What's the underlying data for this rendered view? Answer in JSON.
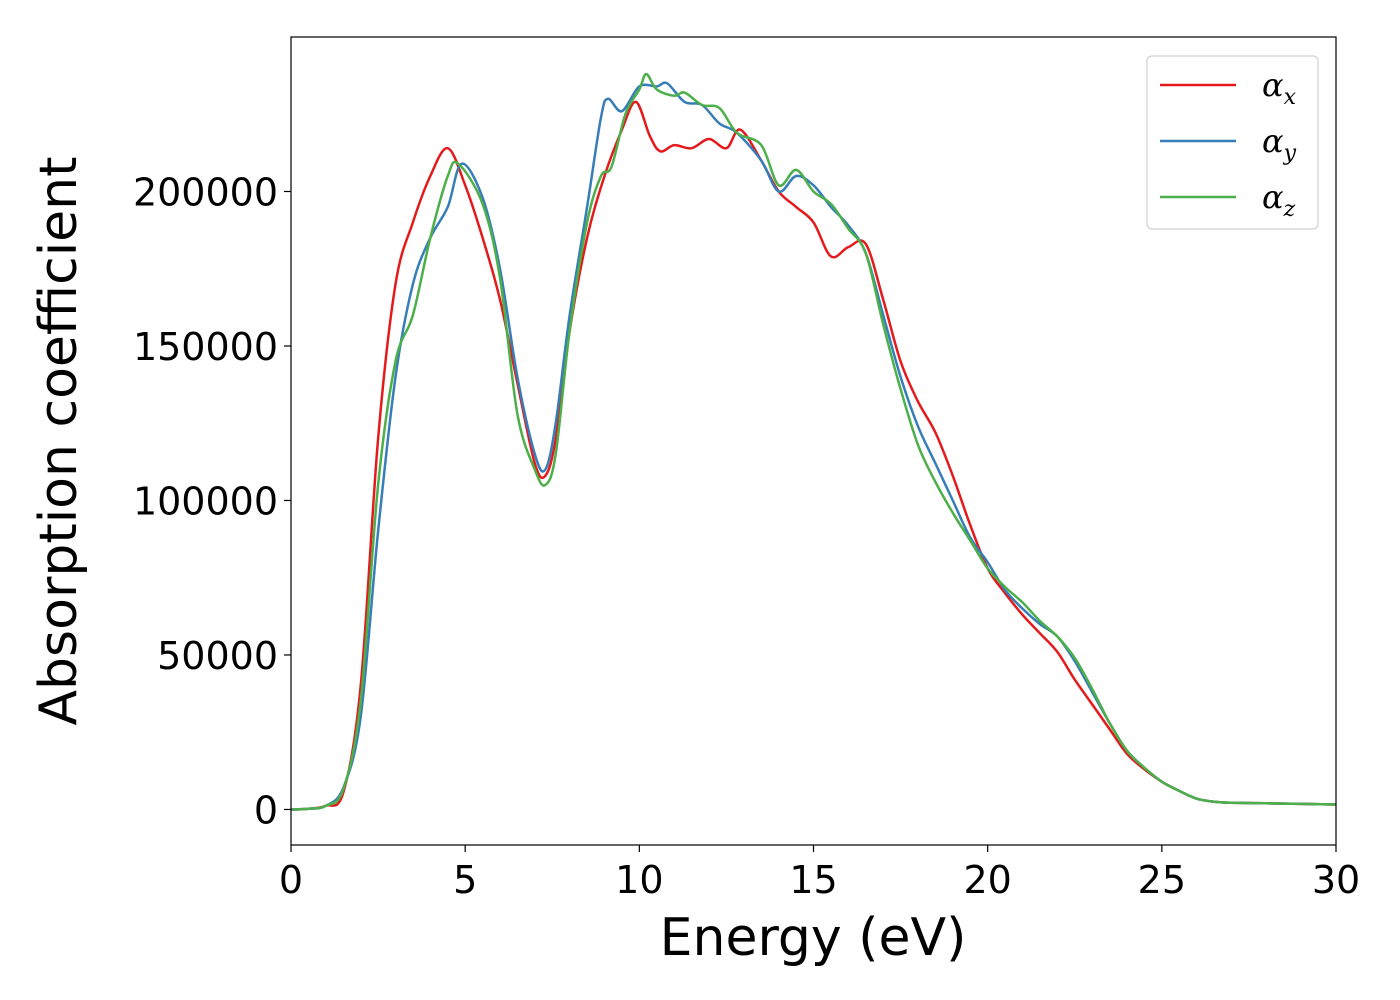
{
  "chart_data": {
    "type": "line",
    "xlabel": "Energy (eV)",
    "ylabel": "Absorption coefficient",
    "xlim": [
      0,
      30
    ],
    "ylim": [
      -11500,
      250000
    ],
    "xticks": [
      0,
      5,
      10,
      15,
      20,
      25,
      30
    ],
    "xtick_labels": [
      "0",
      "5",
      "10",
      "15",
      "20",
      "25",
      "30"
    ],
    "yticks": [
      0,
      50000,
      100000,
      150000,
      200000
    ],
    "ytick_labels": [
      "0",
      "50000",
      "100000",
      "150000",
      "200000"
    ],
    "grid": false,
    "legend_position": "top-right",
    "series": [
      {
        "name": "α",
        "subscript": "x",
        "color": "#e41a1c",
        "points": [
          [
            0,
            0
          ],
          [
            0.5,
            200
          ],
          [
            1,
            1200
          ],
          [
            1.5,
            5500
          ],
          [
            2,
            40000
          ],
          [
            2.5,
            120000
          ],
          [
            3,
            170000
          ],
          [
            3.5,
            190000
          ],
          [
            4,
            205000
          ],
          [
            4.5,
            214000
          ],
          [
            5,
            202000
          ],
          [
            5.5,
            185000
          ],
          [
            6,
            165000
          ],
          [
            6.5,
            138000
          ],
          [
            7,
            112000
          ],
          [
            7.3,
            108000
          ],
          [
            7.6,
            120000
          ],
          [
            8,
            155000
          ],
          [
            8.5,
            185000
          ],
          [
            9,
            205000
          ],
          [
            9.5,
            220000
          ],
          [
            9.9,
            229000
          ],
          [
            10.3,
            218000
          ],
          [
            10.6,
            213000
          ],
          [
            11,
            215000
          ],
          [
            11.5,
            214000
          ],
          [
            12,
            217000
          ],
          [
            12.5,
            214000
          ],
          [
            12.9,
            220000
          ],
          [
            13.5,
            210000
          ],
          [
            14,
            200000
          ],
          [
            14.5,
            195000
          ],
          [
            15,
            190000
          ],
          [
            15.5,
            179000
          ],
          [
            16,
            182000
          ],
          [
            16.5,
            183000
          ],
          [
            17,
            165000
          ],
          [
            17.5,
            145000
          ],
          [
            18,
            132000
          ],
          [
            18.5,
            122000
          ],
          [
            19,
            108000
          ],
          [
            19.5,
            92000
          ],
          [
            20,
            78000
          ],
          [
            20.5,
            70000
          ],
          [
            21,
            63000
          ],
          [
            21.5,
            57000
          ],
          [
            22,
            51000
          ],
          [
            22.5,
            42000
          ],
          [
            23,
            34000
          ],
          [
            23.5,
            26000
          ],
          [
            24,
            18000
          ],
          [
            24.5,
            13000
          ],
          [
            25,
            9000
          ],
          [
            25.5,
            6000
          ],
          [
            26,
            3500
          ],
          [
            26.5,
            2500
          ],
          [
            27,
            2200
          ],
          [
            28,
            2000
          ],
          [
            29,
            1800
          ],
          [
            30,
            1600
          ]
        ]
      },
      {
        "name": "α",
        "subscript": "y",
        "color": "#377eb8",
        "points": [
          [
            0,
            0
          ],
          [
            0.5,
            200
          ],
          [
            1,
            1200
          ],
          [
            1.5,
            7000
          ],
          [
            2,
            30000
          ],
          [
            2.5,
            90000
          ],
          [
            3,
            140000
          ],
          [
            3.5,
            170000
          ],
          [
            4,
            185000
          ],
          [
            4.5,
            195000
          ],
          [
            4.9,
            209000
          ],
          [
            5.5,
            198000
          ],
          [
            6,
            175000
          ],
          [
            6.5,
            140000
          ],
          [
            7,
            115000
          ],
          [
            7.3,
            110000
          ],
          [
            7.6,
            125000
          ],
          [
            8,
            160000
          ],
          [
            8.5,
            195000
          ],
          [
            8.9,
            224000
          ],
          [
            9.1,
            230000
          ],
          [
            9.5,
            226000
          ],
          [
            10,
            234000
          ],
          [
            10.5,
            234000
          ],
          [
            10.8,
            235000
          ],
          [
            11.3,
            229000
          ],
          [
            11.8,
            228000
          ],
          [
            12.3,
            222000
          ],
          [
            12.8,
            219000
          ],
          [
            13.5,
            210000
          ],
          [
            14,
            200000
          ],
          [
            14.5,
            205000
          ],
          [
            15,
            202000
          ],
          [
            15.5,
            195000
          ],
          [
            16,
            189000
          ],
          [
            16.5,
            180000
          ],
          [
            17,
            160000
          ],
          [
            17.5,
            140000
          ],
          [
            18,
            124000
          ],
          [
            18.5,
            112000
          ],
          [
            19,
            100000
          ],
          [
            19.5,
            88000
          ],
          [
            20,
            80000
          ],
          [
            20.5,
            71000
          ],
          [
            21,
            65000
          ],
          [
            21.5,
            60000
          ],
          [
            22,
            56000
          ],
          [
            22.5,
            48000
          ],
          [
            23,
            38000
          ],
          [
            23.5,
            28000
          ],
          [
            24,
            19000
          ],
          [
            24.5,
            13500
          ],
          [
            25,
            9000
          ],
          [
            25.5,
            6000
          ],
          [
            26,
            3500
          ],
          [
            26.5,
            2500
          ],
          [
            27,
            2200
          ],
          [
            28,
            2000
          ],
          [
            29,
            1800
          ],
          [
            30,
            1600
          ]
        ]
      },
      {
        "name": "α",
        "subscript": "z",
        "color": "#4daf4a",
        "points": [
          [
            0,
            0
          ],
          [
            0.5,
            200
          ],
          [
            1,
            1200
          ],
          [
            1.5,
            6500
          ],
          [
            2,
            35000
          ],
          [
            2.5,
            105000
          ],
          [
            3,
            145000
          ],
          [
            3.5,
            160000
          ],
          [
            4,
            185000
          ],
          [
            4.5,
            205000
          ],
          [
            4.8,
            209000
          ],
          [
            5.5,
            196000
          ],
          [
            6,
            172000
          ],
          [
            6.5,
            128000
          ],
          [
            7,
            110000
          ],
          [
            7.3,
            105000
          ],
          [
            7.6,
            115000
          ],
          [
            8,
            155000
          ],
          [
            8.5,
            190000
          ],
          [
            8.9,
            205000
          ],
          [
            9.2,
            208000
          ],
          [
            9.6,
            225000
          ],
          [
            10,
            233000
          ],
          [
            10.2,
            238000
          ],
          [
            10.5,
            233000
          ],
          [
            11,
            231000
          ],
          [
            11.3,
            232000
          ],
          [
            11.8,
            228000
          ],
          [
            12.3,
            227000
          ],
          [
            12.8,
            219000
          ],
          [
            13.5,
            215000
          ],
          [
            14,
            202000
          ],
          [
            14.5,
            207000
          ],
          [
            15,
            200000
          ],
          [
            15.5,
            196000
          ],
          [
            16,
            188000
          ],
          [
            16.5,
            180000
          ],
          [
            17,
            157000
          ],
          [
            17.5,
            136000
          ],
          [
            18,
            118000
          ],
          [
            18.5,
            106000
          ],
          [
            19,
            96000
          ],
          [
            19.5,
            87000
          ],
          [
            20,
            78000
          ],
          [
            20.5,
            72000
          ],
          [
            21,
            67000
          ],
          [
            21.5,
            61000
          ],
          [
            22,
            56000
          ],
          [
            22.5,
            49000
          ],
          [
            23,
            39000
          ],
          [
            23.5,
            28000
          ],
          [
            24,
            19000
          ],
          [
            24.5,
            13500
          ],
          [
            25,
            9000
          ],
          [
            25.5,
            6000
          ],
          [
            26,
            3500
          ],
          [
            26.5,
            2500
          ],
          [
            27,
            2200
          ],
          [
            28,
            2000
          ],
          [
            29,
            1800
          ],
          [
            30,
            1600
          ]
        ]
      }
    ]
  }
}
